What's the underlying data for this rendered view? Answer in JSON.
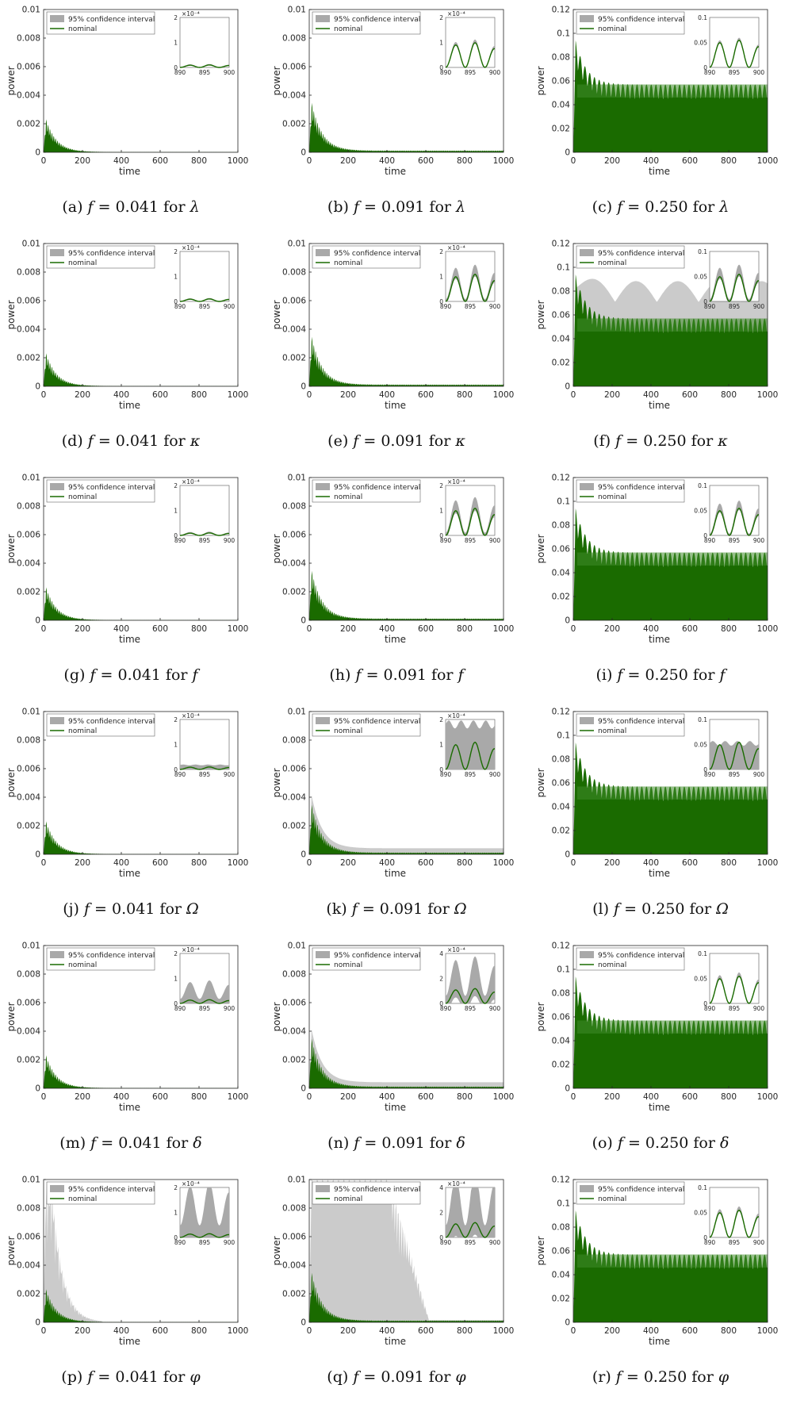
{
  "colors": {
    "nominal": "#1a6b00",
    "ci": "#a9a9a9",
    "ci_light": "#c8c8c8",
    "axis": "#262626"
  },
  "legend_labels": {
    "ci": "95% confidence interval",
    "nominal": "nominal"
  },
  "charts": [
    {
      "id": "a",
      "caption_prefix": "(a)",
      "f_value": "0.041",
      "param": "λ",
      "ci_level": "none",
      "peak": 0.0024,
      "ylim": [
        0,
        0.01
      ],
      "yticks": [
        "0",
        "0.002",
        "0.004",
        "0.006",
        "0.008",
        "0.01"
      ],
      "xticks": [
        "0",
        "200",
        "400",
        "600",
        "800",
        "1000"
      ],
      "xlabel": "time",
      "ylabel": "power",
      "inset": {
        "ymax_label": "2",
        "ymid_label": "1",
        "exp_label": "×10⁻⁴",
        "amp": 0.1,
        "ci_width": 0.03,
        "xticks": [
          "890",
          "895",
          "900"
        ],
        "yticks": [
          "0",
          "1",
          "2"
        ]
      }
    },
    {
      "id": "b",
      "caption_prefix": "(b)",
      "f_value": "0.091",
      "param": "λ",
      "ci_level": "none",
      "peak": 0.0036,
      "ylim": [
        0,
        0.01
      ],
      "yticks": [
        "0",
        "0.002",
        "0.004",
        "0.006",
        "0.008",
        "0.01"
      ],
      "xticks": [
        "0",
        "200",
        "400",
        "600",
        "800",
        "1000"
      ],
      "xlabel": "time",
      "ylabel": "power",
      "inset": {
        "ymax_label": "2",
        "ymid_label": "1",
        "exp_label": "×10⁻⁴",
        "amp": 1.0,
        "ci_width": 0.1,
        "xticks": [
          "890",
          "895",
          "900"
        ],
        "yticks": [
          "0",
          "1",
          "2"
        ]
      }
    },
    {
      "id": "c",
      "caption_prefix": "(c)",
      "f_value": "0.250",
      "param": "λ",
      "ci_level": "none",
      "peak": 0.094,
      "ylim": [
        0,
        0.12
      ],
      "yticks": [
        "0",
        "0.02",
        "0.04",
        "0.06",
        "0.08",
        "0.1",
        "0.12"
      ],
      "xticks": [
        "0",
        "200",
        "400",
        "600",
        "800",
        "1000"
      ],
      "xlabel": "time",
      "ylabel": "power",
      "inset": {
        "ymax_label": "0.1",
        "ymid_label": "0.05",
        "exp_label": "",
        "amp": 0.055,
        "ci_width": 0.004,
        "xticks": [
          "890",
          "895",
          "900"
        ],
        "yticks": [
          "0",
          "0.05",
          "0.1"
        ]
      }
    },
    {
      "id": "d",
      "caption_prefix": "(d)",
      "f_value": "0.041",
      "param": "κ",
      "ci_level": "none",
      "peak": 0.0024,
      "ylim": [
        0,
        0.01
      ],
      "yticks": [
        "0",
        "0.002",
        "0.004",
        "0.006",
        "0.008",
        "0.01"
      ],
      "xticks": [
        "0",
        "200",
        "400",
        "600",
        "800",
        "1000"
      ],
      "xlabel": "time",
      "ylabel": "power",
      "inset": {
        "ymax_label": "2",
        "ymid_label": "1",
        "exp_label": "×10⁻⁴",
        "amp": 0.1,
        "ci_width": 0.03,
        "xticks": [
          "890",
          "895",
          "900"
        ],
        "yticks": [
          "0",
          "1",
          "2"
        ]
      }
    },
    {
      "id": "e",
      "caption_prefix": "(e)",
      "f_value": "0.091",
      "param": "κ",
      "ci_level": "none",
      "peak": 0.0036,
      "ylim": [
        0,
        0.01
      ],
      "yticks": [
        "0",
        "0.002",
        "0.004",
        "0.006",
        "0.008",
        "0.01"
      ],
      "xticks": [
        "0",
        "200",
        "400",
        "600",
        "800",
        "1000"
      ],
      "xlabel": "time",
      "ylabel": "power",
      "inset": {
        "ymax_label": "2",
        "ymid_label": "1",
        "exp_label": "×10⁻⁴",
        "amp": 1.1,
        "ci_width": 0.3,
        "xticks": [
          "890",
          "895",
          "900"
        ],
        "yticks": [
          "0",
          "1",
          "2"
        ]
      }
    },
    {
      "id": "f",
      "caption_prefix": "(f)",
      "f_value": "0.250",
      "param": "κ",
      "ci_level": "medium",
      "peak": 0.094,
      "ylim": [
        0,
        0.12
      ],
      "yticks": [
        "0",
        "0.02",
        "0.04",
        "0.06",
        "0.08",
        "0.1",
        "0.12"
      ],
      "xticks": [
        "0",
        "200",
        "400",
        "600",
        "800",
        "1000"
      ],
      "xlabel": "time",
      "ylabel": "power",
      "inset": {
        "ymax_label": "0.1",
        "ymid_label": "0.05",
        "exp_label": "",
        "amp": 0.055,
        "ci_width": 0.015,
        "xticks": [
          "890",
          "895",
          "900"
        ],
        "yticks": [
          "0",
          "0.05",
          "0.1"
        ]
      }
    },
    {
      "id": "g",
      "caption_prefix": "(g)",
      "f_value": "0.041",
      "param": "f",
      "ci_level": "none",
      "peak": 0.0024,
      "ylim": [
        0,
        0.01
      ],
      "yticks": [
        "0",
        "0.002",
        "0.004",
        "0.006",
        "0.008",
        "0.01"
      ],
      "xticks": [
        "0",
        "200",
        "400",
        "600",
        "800",
        "1000"
      ],
      "xlabel": "time",
      "ylabel": "power",
      "inset": {
        "ymax_label": "2",
        "ymid_label": "1",
        "exp_label": "×10⁻⁴",
        "amp": 0.1,
        "ci_width": 0.04,
        "xticks": [
          "890",
          "895",
          "900"
        ],
        "yticks": [
          "0",
          "1",
          "2"
        ]
      }
    },
    {
      "id": "h",
      "caption_prefix": "(h)",
      "f_value": "0.091",
      "param": "f",
      "ci_level": "none",
      "peak": 0.0036,
      "ylim": [
        0,
        0.01
      ],
      "yticks": [
        "0",
        "0.002",
        "0.004",
        "0.006",
        "0.008",
        "0.01"
      ],
      "xticks": [
        "0",
        "200",
        "400",
        "600",
        "800",
        "1000"
      ],
      "xlabel": "time",
      "ylabel": "power",
      "inset": {
        "ymax_label": "2",
        "ymid_label": "1",
        "exp_label": "×10⁻⁴",
        "amp": 1.1,
        "ci_width": 0.35,
        "xticks": [
          "890",
          "895",
          "900"
        ],
        "yticks": [
          "0",
          "1",
          "2"
        ]
      }
    },
    {
      "id": "i",
      "caption_prefix": "(i)",
      "f_value": "0.250",
      "param": "f",
      "ci_level": "none",
      "peak": 0.094,
      "ylim": [
        0,
        0.12
      ],
      "yticks": [
        "0",
        "0.02",
        "0.04",
        "0.06",
        "0.08",
        "0.1",
        "0.12"
      ],
      "xticks": [
        "0",
        "200",
        "400",
        "600",
        "800",
        "1000"
      ],
      "xlabel": "time",
      "ylabel": "power",
      "inset": {
        "ymax_label": "0.1",
        "ymid_label": "0.05",
        "exp_label": "",
        "amp": 0.055,
        "ci_width": 0.012,
        "xticks": [
          "890",
          "895",
          "900"
        ],
        "yticks": [
          "0",
          "0.05",
          "0.1"
        ]
      }
    },
    {
      "id": "j",
      "caption_prefix": "(j)",
      "f_value": "0.041",
      "param": "Ω",
      "ci_level": "none",
      "peak": 0.0024,
      "ylim": [
        0,
        0.01
      ],
      "yticks": [
        "0",
        "0.002",
        "0.004",
        "0.006",
        "0.008",
        "0.01"
      ],
      "xticks": [
        "0",
        "200",
        "400",
        "600",
        "800",
        "1000"
      ],
      "xlabel": "time",
      "ylabel": "power",
      "inset": {
        "ymax_label": "2",
        "ymid_label": "1",
        "exp_label": "×10⁻⁴",
        "amp": 0.1,
        "ci_width": 0.2,
        "ci_flat": true,
        "xticks": [
          "890",
          "895",
          "900"
        ],
        "yticks": [
          "0",
          "1",
          "2"
        ]
      }
    },
    {
      "id": "k",
      "caption_prefix": "(k)",
      "f_value": "0.091",
      "param": "Ω",
      "ci_level": "low",
      "peak": 0.0036,
      "ylim": [
        0,
        0.01
      ],
      "yticks": [
        "0",
        "0.002",
        "0.004",
        "0.006",
        "0.008",
        "0.01"
      ],
      "xticks": [
        "0",
        "200",
        "400",
        "600",
        "800",
        "1000"
      ],
      "xlabel": "time",
      "ylabel": "power",
      "inset": {
        "ymax_label": "2",
        "ymid_label": "1",
        "exp_label": "×10⁻⁴",
        "amp": 1.1,
        "ci_width": 2.0,
        "ci_flat": true,
        "xticks": [
          "890",
          "895",
          "900"
        ],
        "yticks": [
          "0",
          "1",
          "2"
        ]
      }
    },
    {
      "id": "l",
      "caption_prefix": "(l)",
      "f_value": "0.250",
      "param": "Ω",
      "ci_level": "none",
      "peak": 0.094,
      "ylim": [
        0,
        0.12
      ],
      "yticks": [
        "0",
        "0.02",
        "0.04",
        "0.06",
        "0.08",
        "0.1",
        "0.12"
      ],
      "xticks": [
        "0",
        "200",
        "400",
        "600",
        "800",
        "1000"
      ],
      "xlabel": "time",
      "ylabel": "power",
      "inset": {
        "ymax_label": "0.1",
        "ymid_label": "0.05",
        "exp_label": "",
        "amp": 0.055,
        "ci_width": 0.058,
        "ci_flat": true,
        "xticks": [
          "890",
          "895",
          "900"
        ],
        "yticks": [
          "0",
          "0.05",
          "0.1"
        ]
      }
    },
    {
      "id": "m",
      "caption_prefix": "(m)",
      "f_value": "0.041",
      "param": "δ",
      "ci_level": "none",
      "peak": 0.0024,
      "ylim": [
        0,
        0.01
      ],
      "yticks": [
        "0",
        "0.002",
        "0.004",
        "0.006",
        "0.008",
        "0.01"
      ],
      "xticks": [
        "0",
        "200",
        "400",
        "600",
        "800",
        "1000"
      ],
      "xlabel": "time",
      "ylabel": "power",
      "inset": {
        "ymax_label": "2",
        "ymid_label": "1",
        "exp_label": "×10⁻⁴",
        "amp": 0.15,
        "ci_width": 0.6,
        "xticks": [
          "890",
          "895",
          "900"
        ],
        "yticks": [
          "0",
          "1",
          "2"
        ]
      }
    },
    {
      "id": "n",
      "caption_prefix": "(n)",
      "f_value": "0.091",
      "param": "δ",
      "ci_level": "low",
      "peak": 0.0036,
      "ylim": [
        0,
        0.01
      ],
      "yticks": [
        "0",
        "0.002",
        "0.004",
        "0.006",
        "0.008",
        "0.01"
      ],
      "xticks": [
        "0",
        "200",
        "400",
        "600",
        "800",
        "1000"
      ],
      "xlabel": "time",
      "ylabel": "power",
      "inset": {
        "ymax_label": "4",
        "ymid_label": "2",
        "exp_label": "×10⁻⁴",
        "amp": 1.2,
        "ci_width": 2.0,
        "xticks": [
          "890",
          "895",
          "900"
        ],
        "yticks": [
          "0",
          "2",
          "4"
        ]
      }
    },
    {
      "id": "o",
      "caption_prefix": "(o)",
      "f_value": "0.250",
      "param": "δ",
      "ci_level": "none",
      "peak": 0.094,
      "ylim": [
        0,
        0.12
      ],
      "yticks": [
        "0",
        "0.02",
        "0.04",
        "0.06",
        "0.08",
        "0.1",
        "0.12"
      ],
      "xticks": [
        "0",
        "200",
        "400",
        "600",
        "800",
        "1000"
      ],
      "xlabel": "time",
      "ylabel": "power",
      "inset": {
        "ymax_label": "0.1",
        "ymid_label": "0.05",
        "exp_label": "",
        "amp": 0.055,
        "ci_width": 0.006,
        "xticks": [
          "890",
          "895",
          "900"
        ],
        "yticks": [
          "0",
          "0.05",
          "0.1"
        ]
      }
    },
    {
      "id": "p",
      "caption_prefix": "(p)",
      "f_value": "0.041",
      "param": "φ",
      "ci_level": "high",
      "peak": 0.0024,
      "ylim": [
        0,
        0.01
      ],
      "yticks": [
        "0",
        "0.002",
        "0.004",
        "0.006",
        "0.008",
        "0.01"
      ],
      "xticks": [
        "0",
        "200",
        "400",
        "600",
        "800",
        "1000"
      ],
      "xlabel": "time",
      "ylabel": "power",
      "inset": {
        "ymax_label": "2",
        "ymid_label": "1",
        "exp_label": "×10⁻⁴",
        "amp": 0.15,
        "ci_width": 1.6,
        "xticks": [
          "890",
          "895",
          "900"
        ],
        "yticks": [
          "0",
          "1",
          "2"
        ]
      }
    },
    {
      "id": "q",
      "caption_prefix": "(q)",
      "f_value": "0.091",
      "param": "φ",
      "ci_level": "extreme",
      "peak": 0.0036,
      "ylim": [
        0,
        0.01
      ],
      "yticks": [
        "0",
        "0.002",
        "0.004",
        "0.006",
        "0.008",
        "0.01"
      ],
      "xticks": [
        "0",
        "200",
        "400",
        "600",
        "800",
        "1000"
      ],
      "xlabel": "time",
      "ylabel": "power",
      "inset": {
        "ymax_label": "4",
        "ymid_label": "2",
        "exp_label": "×10⁻⁴",
        "amp": 1.2,
        "ci_width": 3.2,
        "xticks": [
          "890",
          "895",
          "900"
        ],
        "yticks": [
          "0",
          "2",
          "4"
        ]
      }
    },
    {
      "id": "r",
      "caption_prefix": "(r)",
      "f_value": "0.250",
      "param": "φ",
      "ci_level": "none",
      "peak": 0.094,
      "ylim": [
        0,
        0.12
      ],
      "yticks": [
        "0",
        "0.02",
        "0.04",
        "0.06",
        "0.08",
        "0.1",
        "0.12"
      ],
      "xticks": [
        "0",
        "200",
        "400",
        "600",
        "800",
        "1000"
      ],
      "xlabel": "time",
      "ylabel": "power",
      "inset": {
        "ymax_label": "0.1",
        "ymid_label": "0.05",
        "exp_label": "",
        "amp": 0.055,
        "ci_width": 0.006,
        "xticks": [
          "890",
          "895",
          "900"
        ],
        "yticks": [
          "0",
          "0.05",
          "0.1"
        ]
      }
    }
  ],
  "chart_data": [
    {
      "type": "area",
      "panel": "a",
      "series": [
        {
          "name": "nominal",
          "x": [
            0,
            20,
            50,
            100,
            200,
            300,
            400,
            1000
          ],
          "y": [
            0,
            0.0024,
            0.0012,
            0.0005,
            8e-05,
            3e-05,
            2e-05,
            2e-05
          ]
        }
      ],
      "ylim": [
        0,
        0.01
      ],
      "xlim": [
        0,
        1000
      ]
    },
    {
      "type": "area",
      "panel": "b",
      "series": [
        {
          "name": "nominal",
          "x": [
            0,
            20,
            50,
            100,
            200,
            300,
            400,
            1000
          ],
          "y": [
            0,
            0.0036,
            0.0019,
            0.0008,
            0.0002,
            0.00012,
            0.0001,
            0.0001
          ]
        }
      ],
      "ylim": [
        0,
        0.01
      ],
      "xlim": [
        0,
        1000
      ]
    },
    {
      "type": "area",
      "panel": "c",
      "series": [
        {
          "name": "nominal",
          "x": [
            0,
            20,
            50,
            100,
            200,
            300,
            400,
            1000
          ],
          "y": [
            0,
            0.094,
            0.075,
            0.065,
            0.058,
            0.057,
            0.057,
            0.057
          ]
        }
      ],
      "ylim": [
        0,
        0.12
      ],
      "xlim": [
        0,
        1000
      ]
    },
    {
      "type": "area",
      "panel": "q",
      "series": [
        {
          "name": "95% confidence interval",
          "x": [
            0,
            50,
            200,
            400,
            500,
            600,
            1000
          ],
          "y": [
            0,
            0.01,
            0.01,
            0.01,
            0.005,
            0.0005,
            0.0003
          ]
        }
      ],
      "ylim": [
        0,
        0.01
      ],
      "xlim": [
        0,
        1000
      ]
    }
  ]
}
